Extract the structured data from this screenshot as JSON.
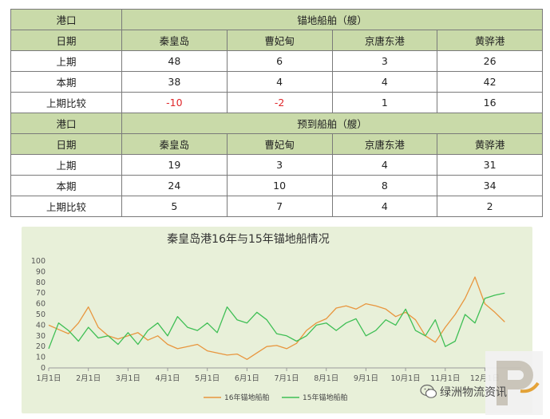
{
  "tables": [
    {
      "port_label": "港口",
      "group_label": "锚地船舶（艘）",
      "date_label": "日期",
      "ports": [
        "秦皇岛",
        "曹妃甸",
        "京唐东港",
        "黄骅港"
      ],
      "rows": [
        {
          "label": "上期",
          "values": [
            "48",
            "6",
            "3",
            "26"
          ],
          "neg": [
            false,
            false,
            false,
            false
          ]
        },
        {
          "label": "本期",
          "values": [
            "38",
            "4",
            "4",
            "42"
          ],
          "neg": [
            false,
            false,
            false,
            false
          ]
        },
        {
          "label": "上期比较",
          "values": [
            "-10",
            "-2",
            "1",
            "16"
          ],
          "neg": [
            true,
            true,
            false,
            false
          ]
        }
      ]
    },
    {
      "port_label": "港口",
      "group_label": "预到船舶（艘）",
      "date_label": "日期",
      "ports": [
        "秦皇岛",
        "曹妃甸",
        "京唐东港",
        "黄骅港"
      ],
      "rows": [
        {
          "label": "上期",
          "values": [
            "19",
            "3",
            "4",
            "31"
          ],
          "neg": [
            false,
            false,
            false,
            false
          ]
        },
        {
          "label": "本期",
          "values": [
            "24",
            "10",
            "8",
            "34"
          ],
          "neg": [
            false,
            false,
            false,
            false
          ]
        },
        {
          "label": "上期比较",
          "values": [
            "5",
            "7",
            "4",
            "2"
          ],
          "neg": [
            false,
            false,
            false,
            false
          ]
        }
      ]
    }
  ],
  "chart_data": {
    "type": "line",
    "title": "秦皇岛港16年与15年锚地船情况",
    "x_tick_labels": [
      "1月1日",
      "2月1日",
      "3月1日",
      "4月1日",
      "5月1日",
      "6月1日",
      "7月1日",
      "8月1日",
      "9月1日",
      "10月1日",
      "11月1日",
      "12月1日"
    ],
    "ylim": [
      0,
      100
    ],
    "y_ticks": [
      0,
      10,
      20,
      30,
      40,
      50,
      60,
      70,
      80,
      90,
      100
    ],
    "grid": false,
    "legend_position": "bottom",
    "series": [
      {
        "name": "16年锚地船舶",
        "color": "#e8963e",
        "x_month": [
          0,
          0.25,
          0.5,
          0.75,
          1.0,
          1.25,
          1.5,
          1.75,
          2.0,
          2.25,
          2.5,
          2.75,
          3.0,
          3.25,
          3.5,
          3.75,
          4.0,
          4.25,
          4.5,
          4.75,
          5.0,
          5.25,
          5.5,
          5.75,
          6.0,
          6.25,
          6.5,
          6.75,
          7.0,
          7.25,
          7.5,
          7.75,
          8.0,
          8.25,
          8.5,
          8.75,
          9.0,
          9.25,
          9.5,
          9.75,
          10.0,
          10.25,
          10.5,
          10.75,
          11.0,
          11.25,
          11.5
        ],
        "values": [
          40,
          36,
          32,
          42,
          57,
          38,
          30,
          27,
          30,
          33,
          26,
          30,
          22,
          18,
          20,
          22,
          16,
          14,
          12,
          13,
          8,
          14,
          20,
          21,
          18,
          23,
          35,
          42,
          46,
          56,
          58,
          55,
          60,
          58,
          55,
          48,
          52,
          45,
          30,
          24,
          38,
          50,
          65,
          85,
          60,
          52,
          43
        ]
      },
      {
        "name": "15年锚地船舶",
        "color": "#3fbf55",
        "x_month": [
          0,
          0.25,
          0.5,
          0.75,
          1.0,
          1.25,
          1.5,
          1.75,
          2.0,
          2.25,
          2.5,
          2.75,
          3.0,
          3.25,
          3.5,
          3.75,
          4.0,
          4.25,
          4.5,
          4.75,
          5.0,
          5.25,
          5.5,
          5.75,
          6.0,
          6.25,
          6.5,
          6.75,
          7.0,
          7.25,
          7.5,
          7.75,
          8.0,
          8.25,
          8.5,
          8.75,
          9.0,
          9.25,
          9.5,
          9.75,
          10.0,
          10.25,
          10.5,
          10.75,
          11.0,
          11.25,
          11.5
        ],
        "values": [
          18,
          42,
          35,
          25,
          38,
          28,
          30,
          22,
          33,
          22,
          35,
          42,
          30,
          48,
          38,
          35,
          42,
          33,
          57,
          45,
          42,
          52,
          45,
          32,
          30,
          25,
          30,
          40,
          42,
          35,
          42,
          46,
          30,
          35,
          45,
          40,
          55,
          35,
          30,
          45,
          20,
          25,
          50,
          42,
          65,
          68,
          70
        ]
      }
    ]
  },
  "watermark": {
    "text": "绿洲物流资讯",
    "icon": "wechat-icon"
  }
}
